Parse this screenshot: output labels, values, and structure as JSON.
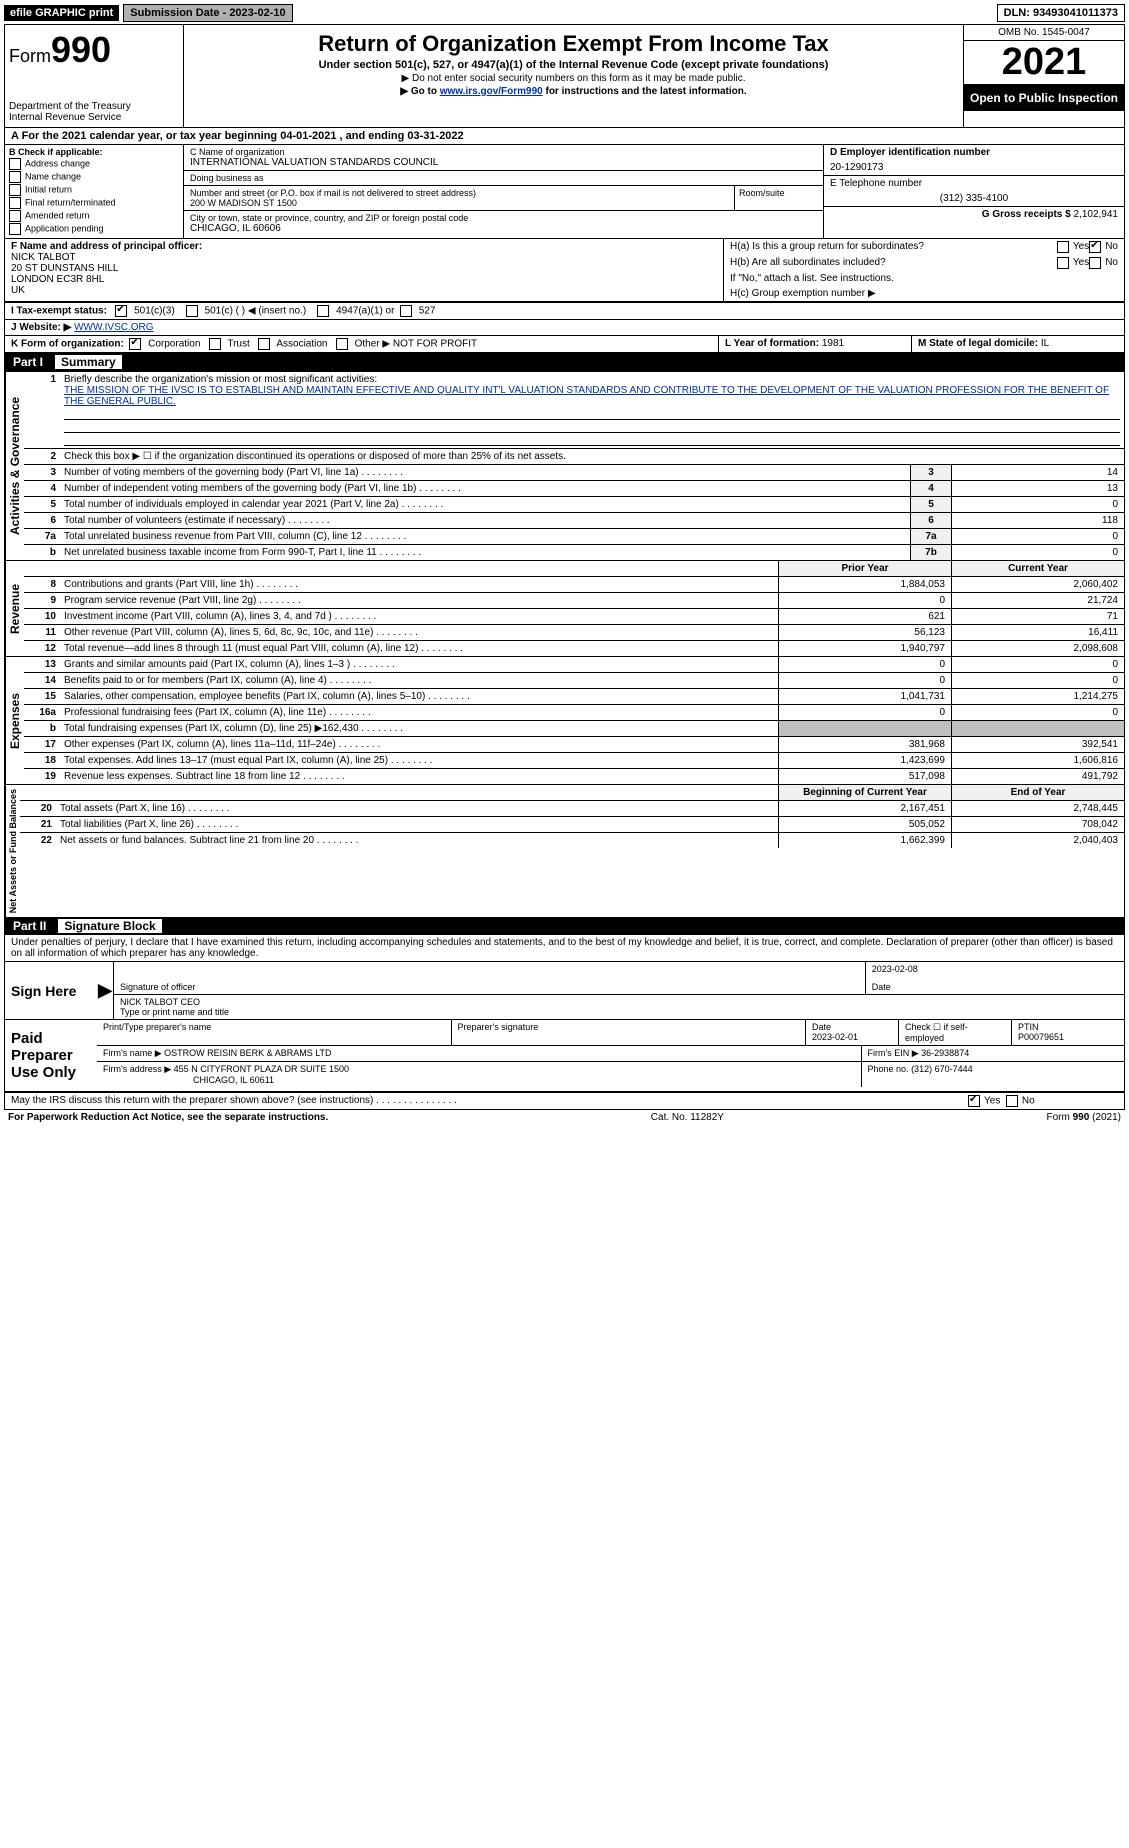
{
  "top_bar": {
    "efile": "efile GRAPHIC print",
    "submission": "Submission Date - 2023-02-10",
    "dln": "DLN: 93493041011373"
  },
  "header": {
    "form_prefix": "Form",
    "form_number": "990",
    "title": "Return of Organization Exempt From Income Tax",
    "subtitle": "Under section 501(c), 527, or 4947(a)(1) of the Internal Revenue Code (except private foundations)",
    "note1": "▶ Do not enter social security numbers on this form as it may be made public.",
    "note2_pre": "▶ Go to ",
    "note2_link": "www.irs.gov/Form990",
    "note2_post": " for instructions and the latest information.",
    "dept": "Department of the Treasury",
    "irs": "Internal Revenue Service",
    "omb": "OMB No. 1545-0047",
    "year": "2021",
    "open": "Open to Public Inspection"
  },
  "period": {
    "label_a": "A For the 2021 calendar year, or tax year beginning ",
    "begin": "04-01-2021",
    "mid": "  , and ending ",
    "end": "03-31-2022"
  },
  "box_b": {
    "header": "B Check if applicable:",
    "items": [
      "Address change",
      "Name change",
      "Initial return",
      "Final return/terminated",
      "Amended return",
      "Application pending"
    ]
  },
  "box_c": {
    "label": "C Name of organization",
    "name": "INTERNATIONAL VALUATION STANDARDS COUNCIL",
    "dba_label": "Doing business as",
    "dba": "",
    "street_label": "Number and street (or P.O. box if mail is not delivered to street address)",
    "suite_label": "Room/suite",
    "street": "200 W MADISON ST 1500",
    "city_label": "City or town, state or province, country, and ZIP or foreign postal code",
    "city": "CHICAGO, IL  60606"
  },
  "box_d": {
    "label": "D Employer identification number",
    "value": "20-1290173"
  },
  "box_e": {
    "label": "E Telephone number",
    "value": "(312) 335-4100"
  },
  "box_g": {
    "label": "G Gross receipts $",
    "value": "2,102,941"
  },
  "box_f": {
    "label": "F  Name and address of principal officer:",
    "name": "NICK TALBOT",
    "addr1": "20 ST DUNSTANS HILL",
    "addr2": "LONDON    EC3R 8HL",
    "addr3": "UK"
  },
  "box_h": {
    "a": "H(a)  Is this a group return for subordinates?",
    "b": "H(b)  Are all subordinates included?",
    "b_note": "If \"No,\" attach a list. See instructions.",
    "c": "H(c)  Group exemption number ▶"
  },
  "box_i": {
    "label": "I  Tax-exempt status:",
    "opt1": "501(c)(3)",
    "opt2": "501(c) (  ) ◀ (insert no.)",
    "opt3": "4947(a)(1) or",
    "opt4": "527"
  },
  "box_j": {
    "label": "J  Website: ▶",
    "value": "WWW.IVSC.ORG"
  },
  "box_k": {
    "label": "K Form of organization:",
    "opt1": "Corporation",
    "opt2": "Trust",
    "opt3": "Association",
    "opt4": "Other ▶",
    "other": "NOT FOR PROFIT"
  },
  "box_l": {
    "label": "L Year of formation:",
    "value": "1981"
  },
  "box_m": {
    "label": "M State of legal domicile:",
    "value": "IL"
  },
  "part1": {
    "header_part": "Part I",
    "header_title": "Summary",
    "line1_label": "Briefly describe the organization's mission or most significant activities:",
    "line1_text": "THE MISSION OF THE IVSC IS TO ESTABLISH AND MAINTAIN EFFECTIVE AND QUALITY INT'L VALUATION STANDARDS AND CONTRIBUTE TO THE DEVELOPMENT OF THE VALUATION PROFESSION FOR THE BENEFIT OF THE GENERAL PUBLIC.",
    "line2": "Check this box ▶ ☐  if the organization discontinued its operations or disposed of more than 25% of its net assets.",
    "rows_gov": [
      {
        "n": "3",
        "t": "Number of voting members of the governing body (Part VI, line 1a)",
        "box": "3",
        "v": "14"
      },
      {
        "n": "4",
        "t": "Number of independent voting members of the governing body (Part VI, line 1b)",
        "box": "4",
        "v": "13"
      },
      {
        "n": "5",
        "t": "Total number of individuals employed in calendar year 2021 (Part V, line 2a)",
        "box": "5",
        "v": "0"
      },
      {
        "n": "6",
        "t": "Total number of volunteers (estimate if necessary)",
        "box": "6",
        "v": "118"
      },
      {
        "n": "7a",
        "t": "Total unrelated business revenue from Part VIII, column (C), line 12",
        "box": "7a",
        "v": "0"
      },
      {
        "n": "b",
        "t": "Net unrelated business taxable income from Form 990-T, Part I, line 11",
        "box": "7b",
        "v": "0"
      }
    ],
    "year_headers": {
      "prior": "Prior Year",
      "current": "Current Year"
    },
    "rows_rev": [
      {
        "n": "8",
        "t": "Contributions and grants (Part VIII, line 1h)",
        "p": "1,884,053",
        "c": "2,060,402"
      },
      {
        "n": "9",
        "t": "Program service revenue (Part VIII, line 2g)",
        "p": "0",
        "c": "21,724"
      },
      {
        "n": "10",
        "t": "Investment income (Part VIII, column (A), lines 3, 4, and 7d )",
        "p": "621",
        "c": "71"
      },
      {
        "n": "11",
        "t": "Other revenue (Part VIII, column (A), lines 5, 6d, 8c, 9c, 10c, and 11e)",
        "p": "56,123",
        "c": "16,411"
      },
      {
        "n": "12",
        "t": "Total revenue—add lines 8 through 11 (must equal Part VIII, column (A), line 12)",
        "p": "1,940,797",
        "c": "2,098,608"
      }
    ],
    "rows_exp": [
      {
        "n": "13",
        "t": "Grants and similar amounts paid (Part IX, column (A), lines 1–3 )",
        "p": "0",
        "c": "0"
      },
      {
        "n": "14",
        "t": "Benefits paid to or for members (Part IX, column (A), line 4)",
        "p": "0",
        "c": "0"
      },
      {
        "n": "15",
        "t": "Salaries, other compensation, employee benefits (Part IX, column (A), lines 5–10)",
        "p": "1,041,731",
        "c": "1,214,275"
      },
      {
        "n": "16a",
        "t": "Professional fundraising fees (Part IX, column (A), line 11e)",
        "p": "0",
        "c": "0"
      },
      {
        "n": "b",
        "t": "Total fundraising expenses (Part IX, column (D), line 25) ▶162,430",
        "p": "",
        "c": "",
        "grey": true
      },
      {
        "n": "17",
        "t": "Other expenses (Part IX, column (A), lines 11a–11d, 11f–24e)",
        "p": "381,968",
        "c": "392,541"
      },
      {
        "n": "18",
        "t": "Total expenses. Add lines 13–17 (must equal Part IX, column (A), line 25)",
        "p": "1,423,699",
        "c": "1,606,816"
      },
      {
        "n": "19",
        "t": "Revenue less expenses. Subtract line 18 from line 12",
        "p": "517,098",
        "c": "491,792"
      }
    ],
    "net_headers": {
      "begin": "Beginning of Current Year",
      "end": "End of Year"
    },
    "rows_net": [
      {
        "n": "20",
        "t": "Total assets (Part X, line 16)",
        "p": "2,167,451",
        "c": "2,748,445"
      },
      {
        "n": "21",
        "t": "Total liabilities (Part X, line 26)",
        "p": "505,052",
        "c": "708,042"
      },
      {
        "n": "22",
        "t": "Net assets or fund balances. Subtract line 21 from line 20",
        "p": "1,662,399",
        "c": "2,040,403"
      }
    ],
    "side_labels": {
      "gov": "Activities & Governance",
      "rev": "Revenue",
      "exp": "Expenses",
      "net": "Net Assets or Fund Balances"
    }
  },
  "part2": {
    "header_part": "Part II",
    "header_title": "Signature Block",
    "penalties": "Under penalties of perjury, I declare that I have examined this return, including accompanying schedules and statements, and to the best of my knowledge and belief, it is true, correct, and complete. Declaration of preparer (other than officer) is based on all information of which preparer has any knowledge.",
    "sign_here": "Sign Here",
    "sig_of_officer": "Signature of officer",
    "date": "Date",
    "sig_date": "2023-02-08",
    "officer_name": "NICK TALBOT CEO",
    "type_name": "Type or print name and title",
    "paid": "Paid Preparer Use Only",
    "prep_name_label": "Print/Type preparer's name",
    "prep_sig_label": "Preparer's signature",
    "prep_date_label": "Date",
    "prep_date": "2023-02-01",
    "self_emp": "Check ☐ if self-employed",
    "ptin_label": "PTIN",
    "ptin": "P00079651",
    "firm_name_label": "Firm's name   ▶",
    "firm_name": "OSTROW REISIN BERK & ABRAMS LTD",
    "firm_ein_label": "Firm's EIN ▶",
    "firm_ein": "36-2938874",
    "firm_addr_label": "Firm's address ▶",
    "firm_addr1": "455 N CITYFRONT PLAZA DR SUITE 1500",
    "firm_addr2": "CHICAGO, IL  60611",
    "firm_phone_label": "Phone no.",
    "firm_phone": "(312) 670-7444",
    "discuss": "May the IRS discuss this return with the preparer shown above? (see instructions)",
    "yes": "Yes",
    "no": "No"
  },
  "footer": {
    "left": "For Paperwork Reduction Act Notice, see the separate instructions.",
    "mid": "Cat. No. 11282Y",
    "right": "Form 990 (2021)"
  }
}
